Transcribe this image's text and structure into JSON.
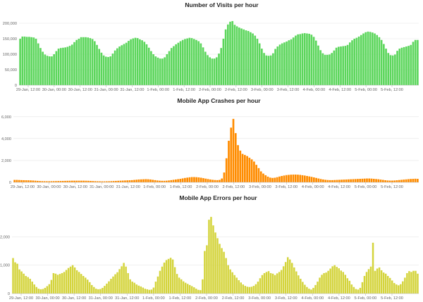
{
  "chart_data": [
    {
      "type": "bar",
      "title": "Number of Visits per hour",
      "xlabel": "",
      "ylabel": "",
      "ylim": [
        0,
        225000
      ],
      "yticks": [
        "0",
        "50,000",
        "100,000",
        "150,000",
        "200,000"
      ],
      "ytick_values": [
        0,
        50000,
        100000,
        150000,
        200000
      ],
      "xticks": [
        "29-Jan, 12:00",
        "30-Jan, 00:00",
        "30-Jan, 12:00",
        "31-Jan, 00:00",
        "31-Jan, 12:00",
        "1-Feb, 00:00",
        "1-Feb, 12:00",
        "2-Feb, 00:00",
        "2-Feb, 12:00",
        "3-Feb, 00:00",
        "3-Feb, 12:00",
        "4-Feb, 00:00",
        "4-Feb, 12:00",
        "5-Feb, 00:00",
        "5-Feb, 12:00"
      ],
      "color": "#5cd65c",
      "grid": true,
      "values": [
        150000,
        157000,
        157000,
        156000,
        156000,
        155000,
        154000,
        150000,
        135000,
        120000,
        108000,
        99000,
        95000,
        93000,
        93000,
        100000,
        110000,
        118000,
        120000,
        121000,
        122000,
        124000,
        127000,
        131000,
        139000,
        146000,
        150000,
        155000,
        155000,
        155000,
        154000,
        152000,
        149000,
        142000,
        130000,
        117000,
        105000,
        96000,
        92000,
        91000,
        93000,
        102000,
        112000,
        119000,
        125000,
        129000,
        133000,
        137000,
        143000,
        148000,
        151000,
        153000,
        152000,
        148000,
        145000,
        140000,
        132000,
        121000,
        110000,
        100000,
        93000,
        89000,
        86000,
        86000,
        90000,
        100000,
        110000,
        120000,
        126000,
        132000,
        137000,
        142000,
        146000,
        149000,
        151000,
        153000,
        152000,
        149000,
        146000,
        142000,
        135000,
        122000,
        108000,
        97000,
        90000,
        86000,
        86000,
        90000,
        102000,
        120000,
        150000,
        180000,
        196000,
        205000,
        207000,
        195000,
        190000,
        186000,
        183000,
        180000,
        177000,
        175000,
        171000,
        167000,
        160000,
        150000,
        135000,
        118000,
        104000,
        96000,
        95000,
        96000,
        103000,
        117000,
        125000,
        131000,
        135000,
        138000,
        141000,
        145000,
        148000,
        154000,
        160000,
        164000,
        165000,
        167000,
        168000,
        167000,
        166000,
        163000,
        156000,
        144000,
        128000,
        113000,
        103000,
        98000,
        98000,
        99000,
        104000,
        112000,
        121000,
        124000,
        125000,
        126000,
        127000,
        130000,
        138000,
        145000,
        150000,
        153000,
        157000,
        162000,
        167000,
        171000,
        173000,
        172000,
        170000,
        167000,
        162000,
        155000,
        146000,
        133000,
        118000,
        104000,
        97000,
        96000,
        99000,
        111000,
        118000,
        121000,
        123000,
        125000,
        127000,
        130000,
        140000,
        146000,
        146000
      ]
    },
    {
      "type": "bar",
      "title": "Mobile App Crashes per hour",
      "xlabel": "",
      "ylabel": "",
      "ylim": [
        0,
        6500
      ],
      "yticks": [
        "0",
        "2,000",
        "4,000",
        "6,000"
      ],
      "ytick_values": [
        0,
        2000,
        4000,
        6000
      ],
      "xticks": [
        "29-Jan, 12:00",
        "30-Jan, 00:00",
        "30-Jan, 12:00",
        "31-Jan, 00:00",
        "31-Jan, 12:00",
        "1-Feb, 00:00",
        "1-Feb, 12:00",
        "2-Feb, 00:00",
        "2-Feb, 12:00",
        "3-Feb, 00:00",
        "3-Feb, 12:00",
        "4-Feb, 00:00",
        "4-Feb, 12:00",
        "5-Feb, 00:00",
        "5-Feb, 12:00"
      ],
      "color": "#ff8c00",
      "grid": true,
      "values": [
        220,
        220,
        210,
        200,
        195,
        190,
        185,
        175,
        165,
        150,
        135,
        120,
        110,
        105,
        100,
        100,
        105,
        110,
        115,
        120,
        125,
        130,
        135,
        140,
        145,
        150,
        150,
        150,
        150,
        150,
        150,
        145,
        140,
        130,
        120,
        110,
        100,
        95,
        90,
        90,
        95,
        100,
        110,
        120,
        130,
        140,
        150,
        160,
        170,
        180,
        190,
        200,
        220,
        240,
        260,
        270,
        280,
        290,
        280,
        260,
        230,
        200,
        170,
        150,
        140,
        140,
        150,
        170,
        200,
        230,
        260,
        290,
        320,
        360,
        400,
        430,
        460,
        480,
        480,
        470,
        450,
        420,
        380,
        340,
        300,
        260,
        230,
        210,
        200,
        220,
        350,
        900,
        2200,
        3800,
        5000,
        5800,
        4500,
        3400,
        2900,
        2600,
        2500,
        2400,
        2250,
        2100,
        1900,
        1600,
        1300,
        1000,
        800,
        650,
        520,
        430,
        400,
        420,
        470,
        530,
        580,
        620,
        660,
        680,
        700,
        710,
        710,
        700,
        680,
        650,
        620,
        580,
        540,
        500,
        450,
        400,
        350,
        300,
        260,
        230,
        210,
        200,
        200,
        210,
        220,
        230,
        240,
        250,
        260,
        270,
        280,
        290,
        300,
        310,
        320,
        330,
        340,
        350,
        350,
        340,
        320,
        300,
        280,
        250,
        220,
        190,
        170,
        160,
        160,
        170,
        190,
        210,
        230,
        250,
        270,
        290,
        310,
        320,
        330,
        320
      ]
    },
    {
      "type": "bar",
      "title": "Mobile App Errors per hour",
      "xlabel": "",
      "ylabel": "",
      "ylim": [
        0,
        3000
      ],
      "yticks": [
        "0",
        "1,000",
        "2,000"
      ],
      "ytick_values": [
        0,
        1000,
        2000
      ],
      "xticks": [
        "29-Jan, 12:00",
        "30-Jan, 00:00",
        "30-Jan, 12:00",
        "31-Jan, 00:00",
        "31-Jan, 12:00",
        "1-Feb, 00:00",
        "1-Feb, 12:00",
        "2-Feb, 00:00",
        "2-Feb, 12:00",
        "3-Feb, 00:00",
        "3-Feb, 12:00",
        "4-Feb, 00:00",
        "4-Feb, 12:00",
        "5-Feb, 00:00",
        "5-Feb, 12:00"
      ],
      "color": "#d4d43c",
      "grid": true,
      "values": [
        1250,
        1100,
        1050,
        850,
        780,
        700,
        620,
        580,
        520,
        420,
        320,
        230,
        170,
        150,
        160,
        200,
        260,
        330,
        480,
        720,
        700,
        660,
        690,
        720,
        760,
        830,
        900,
        950,
        1000,
        920,
        820,
        760,
        690,
        620,
        560,
        490,
        400,
        300,
        230,
        170,
        150,
        160,
        200,
        270,
        350,
        430,
        520,
        600,
        680,
        750,
        860,
        960,
        1080,
        950,
        720,
        500,
        420,
        380,
        320,
        280,
        250,
        210,
        170,
        150,
        130,
        140,
        210,
        420,
        600,
        800,
        950,
        1090,
        1180,
        1220,
        1260,
        1200,
        930,
        690,
        560,
        500,
        430,
        380,
        340,
        300,
        260,
        220,
        170,
        130,
        120,
        500,
        1500,
        1700,
        2600,
        2700,
        2400,
        2150,
        1950,
        1750,
        1600,
        1470,
        1250,
        1000,
        850,
        750,
        650,
        560,
        470,
        390,
        320,
        270,
        240,
        230,
        240,
        270,
        330,
        420,
        540,
        650,
        720,
        760,
        790,
        720,
        700,
        650,
        710,
        760,
        830,
        960,
        1110,
        1280,
        1200,
        1080,
        920,
        780,
        640,
        520,
        410,
        310,
        230,
        170,
        140,
        200,
        300,
        420,
        560,
        660,
        720,
        740,
        800,
        880,
        960,
        1000,
        940,
        890,
        810,
        760,
        660,
        540,
        450,
        320,
        230,
        160,
        140,
        200,
        400,
        620,
        760,
        860,
        950,
        1790,
        800,
        880,
        920,
        820,
        740,
        700,
        620,
        550,
        460,
        370,
        320,
        290,
        330,
        430,
        560,
        720,
        790,
        760,
        800,
        800,
        700
      ]
    }
  ]
}
